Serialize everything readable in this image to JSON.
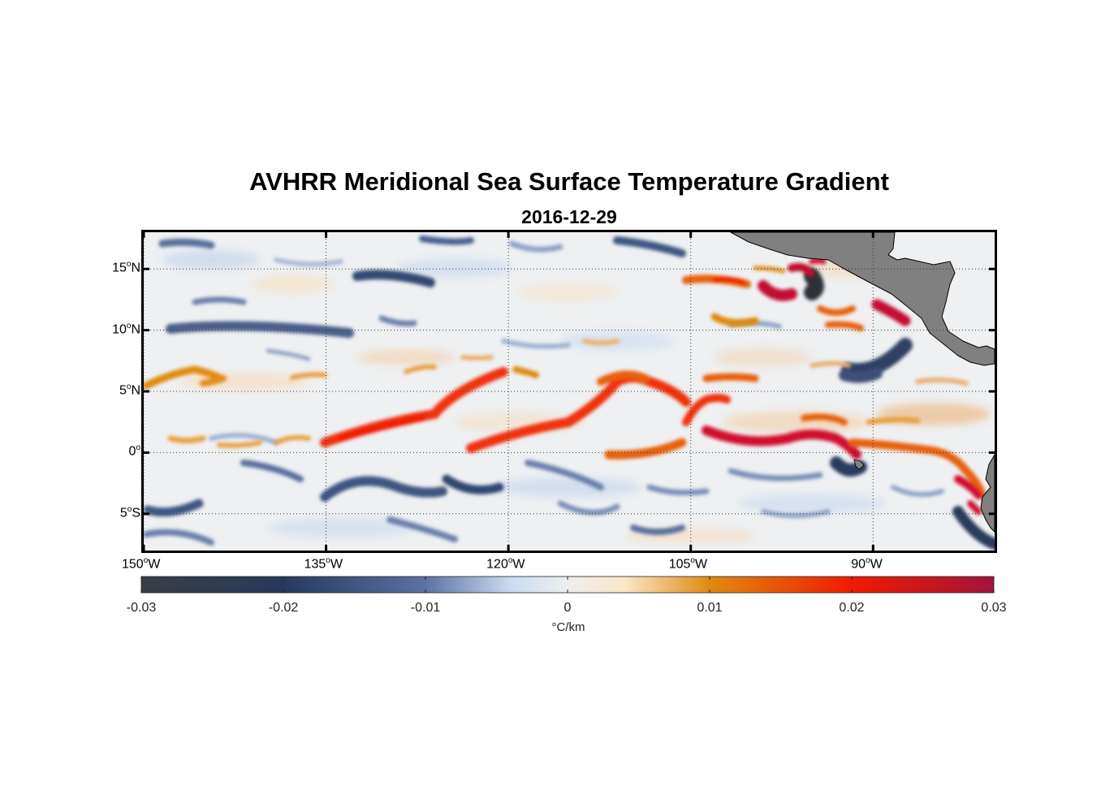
{
  "map": {
    "title": "AVHRR Meridional Sea Surface Temperature Gradient",
    "date": "2016-12-29",
    "extent": {
      "lon_min": -150,
      "lon_max": -80,
      "lat_min": -8,
      "lat_max": 18
    },
    "grid": "dotted",
    "land_color": "#808080",
    "lon_ticks": [
      {
        "value": -150,
        "deg": "150",
        "hemi": "W"
      },
      {
        "value": -135,
        "deg": "135",
        "hemi": "W"
      },
      {
        "value": -120,
        "deg": "120",
        "hemi": "W"
      },
      {
        "value": -105,
        "deg": "105",
        "hemi": "W"
      },
      {
        "value": -90,
        "deg": "90",
        "hemi": "W"
      }
    ],
    "lat_ticks": [
      {
        "value": 15,
        "deg": "15",
        "hemi": "N"
      },
      {
        "value": 10,
        "deg": "10",
        "hemi": "N"
      },
      {
        "value": 5,
        "deg": "5",
        "hemi": "N"
      },
      {
        "value": 0,
        "deg": "0",
        "hemi": ""
      },
      {
        "value": -5,
        "deg": "5",
        "hemi": "S"
      }
    ]
  },
  "colorbar": {
    "unit": "°C/km",
    "min": -0.03,
    "max": 0.03,
    "labels": [
      "-0.03",
      "-0.02",
      "-0.01",
      "0",
      "0.01",
      "0.02",
      "0.03"
    ],
    "ticks": [
      -0.03,
      -0.02,
      -0.01,
      0,
      0.01,
      0.02,
      0.03
    ],
    "stops": [
      {
        "value": -0.03,
        "color": "#3a3d44"
      },
      {
        "value": -0.02,
        "color": "#263a5e"
      },
      {
        "value": -0.01,
        "color": "#5a72a4"
      },
      {
        "value": -0.004,
        "color": "#c9dcf0"
      },
      {
        "value": 0,
        "color": "#eeeeee"
      },
      {
        "value": 0.004,
        "color": "#fbe6c8"
      },
      {
        "value": 0.01,
        "color": "#e08a10"
      },
      {
        "value": 0.02,
        "color": "#f01a00"
      },
      {
        "value": 0.03,
        "color": "#a4143a"
      }
    ]
  }
}
